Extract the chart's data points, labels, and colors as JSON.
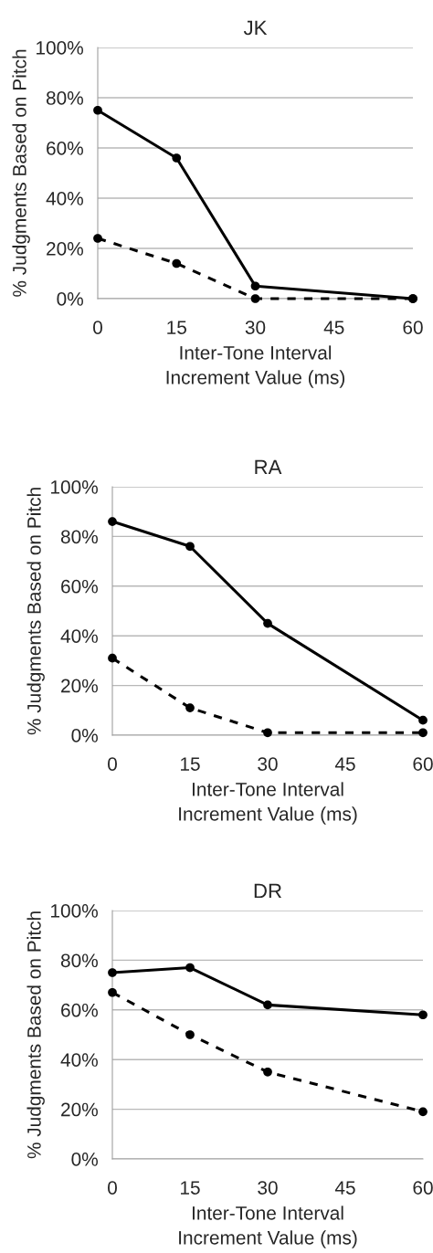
{
  "chart_data": [
    {
      "type": "line",
      "title": "JK",
      "xlabel": "Inter-Tone Interval\nIncrement Value (ms)",
      "ylabel": "% Judgments Based on Pitch",
      "x": [
        0,
        15,
        30,
        60
      ],
      "series": [
        {
          "color": "#000000",
          "values": [
            75,
            56,
            5,
            0
          ],
          "line_style": "solid"
        },
        {
          "color": "#000000",
          "values": [
            24,
            14,
            0,
            0
          ],
          "line_style": "dashed"
        }
      ],
      "xlim": [
        0,
        60
      ],
      "xticks": [
        0,
        15,
        30,
        45,
        60
      ],
      "ylim": [
        0,
        100
      ],
      "yticks": [
        {
          "value": 0,
          "label": "0%"
        },
        {
          "value": 20,
          "label": "20%"
        },
        {
          "value": 40,
          "label": "40%"
        },
        {
          "value": 60,
          "label": "60%"
        },
        {
          "value": 80,
          "label": "80%"
        },
        {
          "value": 100,
          "label": "100%"
        }
      ],
      "grid": "y",
      "marker": "circle"
    },
    {
      "type": "line",
      "title": "RA",
      "xlabel": "Inter-Tone Interval\nIncrement Value (ms)",
      "ylabel": "% Judgments Based on Pitch",
      "x": [
        0,
        15,
        30,
        60
      ],
      "series": [
        {
          "color": "#000000",
          "values": [
            86,
            76,
            45,
            6
          ],
          "line_style": "solid"
        },
        {
          "color": "#000000",
          "values": [
            31,
            11,
            1,
            1
          ],
          "line_style": "dashed"
        }
      ],
      "xlim": [
        0,
        60
      ],
      "xticks": [
        0,
        15,
        30,
        45,
        60
      ],
      "ylim": [
        0,
        100
      ],
      "yticks": [
        {
          "value": 0,
          "label": "0%"
        },
        {
          "value": 20,
          "label": "20%"
        },
        {
          "value": 40,
          "label": "40%"
        },
        {
          "value": 60,
          "label": "60%"
        },
        {
          "value": 80,
          "label": "80%"
        },
        {
          "value": 100,
          "label": "100%"
        }
      ],
      "grid": "y",
      "marker": "circle"
    },
    {
      "type": "line",
      "title": "DR",
      "xlabel": "Inter-Tone Interval\nIncrement Value (ms)",
      "ylabel": "% Judgments Based on Pitch",
      "x": [
        0,
        15,
        30,
        60
      ],
      "series": [
        {
          "color": "#000000",
          "values": [
            75,
            77,
            62,
            58
          ],
          "line_style": "solid"
        },
        {
          "color": "#000000",
          "values": [
            67,
            50,
            35,
            19
          ],
          "line_style": "dashed"
        }
      ],
      "xlim": [
        0,
        60
      ],
      "xticks": [
        0,
        15,
        30,
        45,
        60
      ],
      "ylim": [
        0,
        100
      ],
      "yticks": [
        {
          "value": 0,
          "label": "0%"
        },
        {
          "value": 20,
          "label": "20%"
        },
        {
          "value": 40,
          "label": "40%"
        },
        {
          "value": 60,
          "label": "60%"
        },
        {
          "value": 80,
          "label": "80%"
        },
        {
          "value": 100,
          "label": "100%"
        }
      ],
      "grid": "y",
      "marker": "circle"
    }
  ]
}
